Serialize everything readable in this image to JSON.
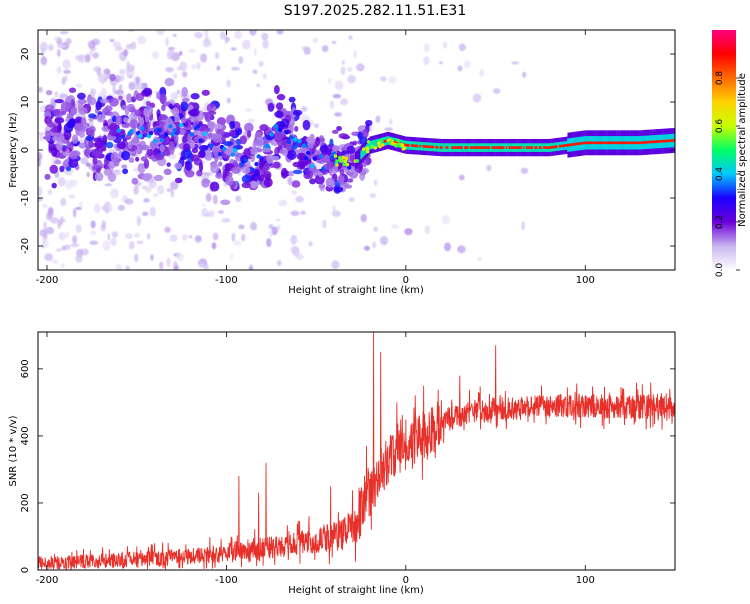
{
  "figure": {
    "title": "S197.2025.282.11.51.E31"
  },
  "chart_data": [
    {
      "type": "heatmap",
      "name": "spectrogram",
      "xlabel": "Height of straight line (km)",
      "ylabel": "Frequency (Hz)",
      "xlim": [
        -205,
        150
      ],
      "ylim": [
        -25,
        25
      ],
      "xticks": [
        -200,
        -100,
        0,
        100
      ],
      "yticks": [
        -20,
        -10,
        0,
        10,
        20
      ],
      "colorbar": {
        "label": "Normalized spectral amplitude",
        "range": [
          0,
          1
        ],
        "ticks": [
          0.0,
          0.2,
          0.4,
          0.6,
          0.8
        ],
        "colormap": [
          "#ffffff",
          "#c8b4f0",
          "#6a00d8",
          "#1a00ff",
          "#00c8ff",
          "#00ff64",
          "#c8ff00",
          "#ffd200",
          "#ff6a00",
          "#ff0000",
          "#ff0080"
        ]
      },
      "ridge": {
        "description": "dominant frequency track (Hz) vs height (km)",
        "points": [
          [
            -200,
            3
          ],
          [
            -180,
            3.5
          ],
          [
            -160,
            4
          ],
          [
            -140,
            3
          ],
          [
            -130,
            4
          ],
          [
            -120,
            4
          ],
          [
            -110,
            3
          ],
          [
            -100,
            -1
          ],
          [
            -90,
            -2
          ],
          [
            -85,
            -3
          ],
          [
            -80,
            -1
          ],
          [
            -75,
            3
          ],
          [
            -70,
            4
          ],
          [
            -60,
            1
          ],
          [
            -50,
            -3
          ],
          [
            -40,
            -2
          ],
          [
            -30,
            -3
          ],
          [
            -25,
            -1
          ],
          [
            -20,
            1
          ],
          [
            -10,
            2
          ],
          [
            0,
            1
          ],
          [
            20,
            0.5
          ],
          [
            50,
            0.5
          ],
          [
            80,
            0.5
          ],
          [
            100,
            1.5
          ],
          [
            130,
            1.5
          ],
          [
            150,
            2
          ]
        ]
      }
    },
    {
      "type": "line",
      "name": "snr",
      "xlabel": "Height of straight line (km)",
      "ylabel": "SNR (10 * v/v)",
      "xlim": [
        -205,
        150
      ],
      "ylim": [
        0,
        710
      ],
      "xticks": [
        -200,
        -100,
        0,
        100
      ],
      "yticks": [
        0,
        200,
        400,
        600
      ],
      "color": "#e8302a",
      "trend": [
        [
          -205,
          20
        ],
        [
          -180,
          25
        ],
        [
          -160,
          30
        ],
        [
          -140,
          35
        ],
        [
          -120,
          40
        ],
        [
          -110,
          45
        ],
        [
          -100,
          55
        ],
        [
          -90,
          60
        ],
        [
          -80,
          65
        ],
        [
          -70,
          70
        ],
        [
          -60,
          80
        ],
        [
          -50,
          90
        ],
        [
          -40,
          100
        ],
        [
          -30,
          130
        ],
        [
          -25,
          170
        ],
        [
          -20,
          230
        ],
        [
          -15,
          280
        ],
        [
          -10,
          330
        ],
        [
          -5,
          350
        ],
        [
          0,
          370
        ],
        [
          10,
          400
        ],
        [
          20,
          440
        ],
        [
          30,
          460
        ],
        [
          40,
          480
        ],
        [
          60,
          480
        ],
        [
          80,
          490
        ],
        [
          100,
          490
        ],
        [
          120,
          485
        ],
        [
          140,
          490
        ],
        [
          150,
          485
        ]
      ],
      "spikes": [
        [
          -93,
          280
        ],
        [
          -82,
          230
        ],
        [
          -78,
          320
        ],
        [
          -42,
          250
        ],
        [
          -22,
          370
        ],
        [
          -18,
          710
        ],
        [
          -14,
          650
        ],
        [
          -5,
          500
        ],
        [
          10,
          550
        ],
        [
          30,
          580
        ],
        [
          50,
          670
        ]
      ]
    }
  ]
}
